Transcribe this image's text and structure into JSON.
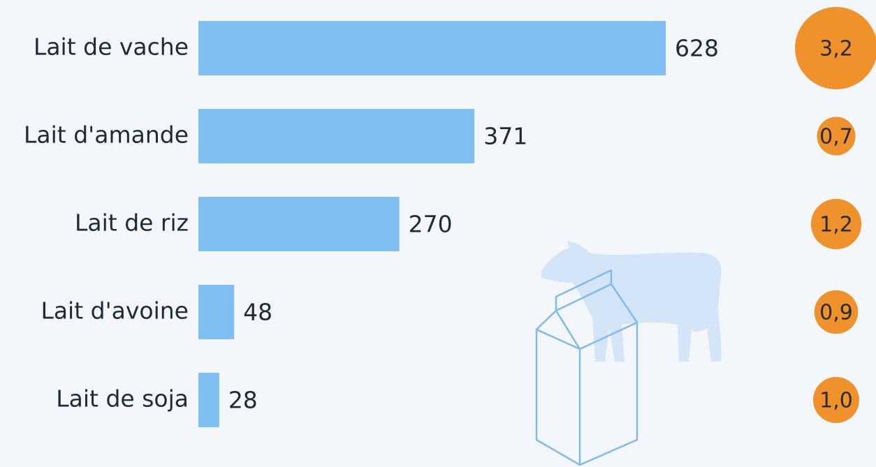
{
  "chart_data": {
    "type": "bar",
    "categories": [
      "Lait de vache",
      "Lait d'amande",
      "Lait de riz",
      "Lait d'avoine",
      "Lait de soja"
    ],
    "values": [
      628,
      371,
      270,
      48,
      28
    ],
    "color": "#80bff2",
    "bubbles": {
      "values": [
        3.2,
        0.7,
        1.2,
        0.9,
        1.0
      ],
      "value_labels": [
        "3,2",
        "0,7",
        "1,2",
        "0,9",
        "1,0"
      ],
      "color": "#f0922b"
    }
  }
}
